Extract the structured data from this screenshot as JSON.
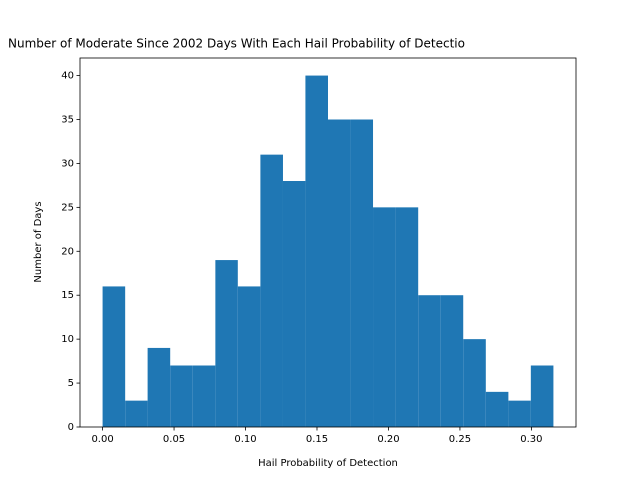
{
  "chart_data": {
    "type": "histogram",
    "title": "Number of Moderate Since 2002 Days With Each Hail Probability of Detectio",
    "xlabel": "Hail Probability of Detection",
    "ylabel": "Number of Days",
    "color": "#1f77b4",
    "bins": [
      0,
      0.0158,
      0.0315,
      0.0473,
      0.0631,
      0.0789,
      0.0946,
      0.1104,
      0.1262,
      0.1419,
      0.1577,
      0.1735,
      0.1892,
      0.205,
      0.2208,
      0.2366,
      0.2523,
      0.2681,
      0.2839,
      0.2996,
      0.3154
    ],
    "values": [
      16,
      3,
      9,
      7,
      7,
      19,
      16,
      31,
      28,
      40,
      35,
      35,
      25,
      25,
      15,
      15,
      10,
      4,
      3,
      7
    ],
    "xlim": [
      -0.0158,
      0.3312
    ],
    "ylim": [
      0,
      42
    ],
    "xticks": [
      {
        "value": 0,
        "label": "0.00"
      },
      {
        "value": 0.05,
        "label": "0.05"
      },
      {
        "value": 0.1,
        "label": "0.10"
      },
      {
        "value": 0.15,
        "label": "0.15"
      },
      {
        "value": 0.2,
        "label": "0.20"
      },
      {
        "value": 0.25,
        "label": "0.25"
      },
      {
        "value": 0.3,
        "label": "0.30"
      }
    ],
    "yticks": [
      0,
      5,
      10,
      15,
      20,
      25,
      30,
      35,
      40
    ]
  }
}
